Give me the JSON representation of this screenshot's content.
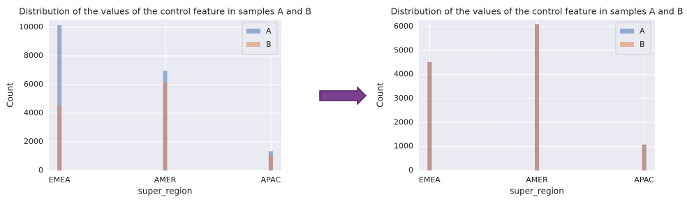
{
  "chart_data": [
    {
      "type": "bar",
      "title": "Distribution of the values of the control feature in samples A and B",
      "x_label": "super_region",
      "y_label": "Count",
      "categories": [
        "EMEA",
        "AMER",
        "APAC"
      ],
      "series": [
        {
          "name": "A",
          "color": "#4c72b0",
          "values": [
            10150,
            6950,
            1350
          ]
        },
        {
          "name": "B",
          "color": "#dd8452",
          "values": [
            4550,
            6100,
            1080
          ]
        }
      ],
      "ylim": [
        0,
        10540
      ],
      "yticks": [
        0,
        2000,
        4000,
        6000,
        8000,
        10000
      ],
      "grid": true,
      "legend": "upper right"
    },
    {
      "type": "bar",
      "title": "Distribution of the values of the control feature in samples A and B",
      "x_label": "super_region",
      "y_label": "Count",
      "categories": [
        "EMEA",
        "AMER",
        "APAC"
      ],
      "series": [
        {
          "name": "A",
          "color": "#4c72b0",
          "values": [
            4520,
            6100,
            1080
          ]
        },
        {
          "name": "B",
          "color": "#dd8452",
          "values": [
            4520,
            6100,
            1080
          ]
        }
      ],
      "ylim": [
        0,
        6290
      ],
      "yticks": [
        0,
        1000,
        2000,
        3000,
        4000,
        5000,
        6000
      ],
      "grid": true,
      "legend": "upper right"
    }
  ]
}
